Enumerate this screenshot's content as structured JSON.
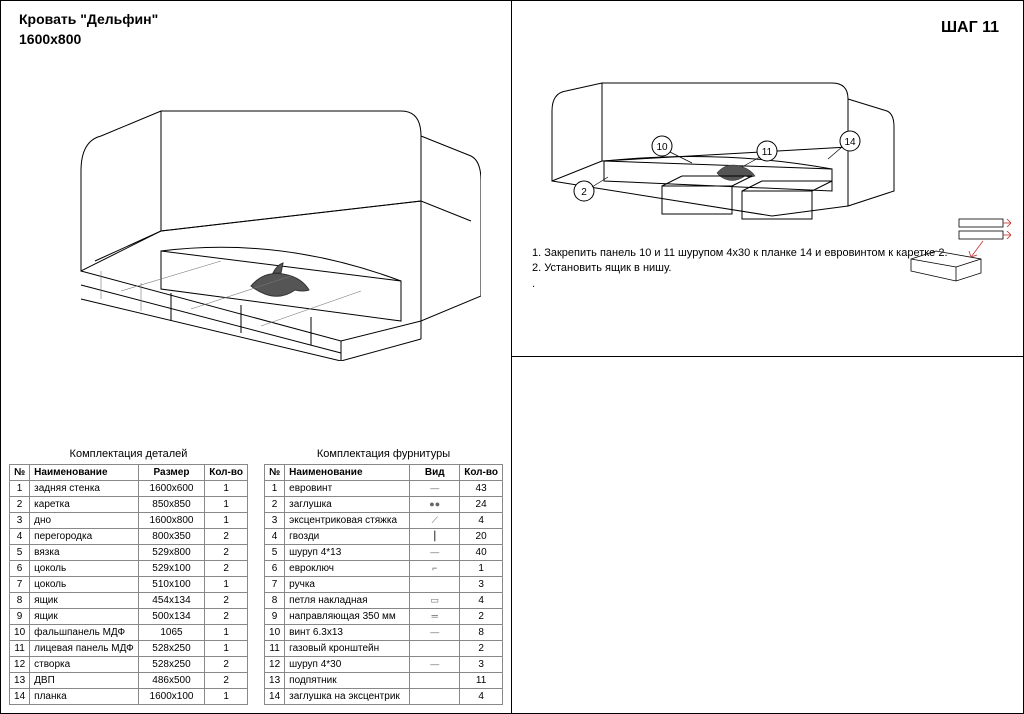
{
  "left": {
    "product_line1": "Кровать \"Дельфин\"",
    "product_line2": "1600х800",
    "parts_table": {
      "caption": "Комплектация деталей",
      "headers": [
        "№",
        "Наименование",
        "Размер",
        "Кол-во"
      ],
      "rows": [
        [
          "1",
          "задняя стенка",
          "1600х600",
          "1"
        ],
        [
          "2",
          "каретка",
          "850х850",
          "1"
        ],
        [
          "3",
          "дно",
          "1600х800",
          "1"
        ],
        [
          "4",
          "перегородка",
          "800х350",
          "2"
        ],
        [
          "5",
          "вязка",
          "529х800",
          "2"
        ],
        [
          "6",
          "цоколь",
          "529х100",
          "2"
        ],
        [
          "7",
          "цоколь",
          "510х100",
          "1"
        ],
        [
          "8",
          "ящик",
          "454х134",
          "2"
        ],
        [
          "9",
          "ящик",
          "500х134",
          "2"
        ],
        [
          "10",
          "фальшпанель МДФ",
          "1065",
          "1"
        ],
        [
          "11",
          "лицевая панель МДФ",
          "528х250",
          "1"
        ],
        [
          "12",
          "створка",
          "528х250",
          "2"
        ],
        [
          "13",
          "ДВП",
          "486х500",
          "2"
        ],
        [
          "14",
          "планка",
          "1600х100",
          "1"
        ]
      ]
    },
    "hardware_table": {
      "caption": "Комплектация фурнитуры",
      "headers": [
        "№",
        "Наименование",
        "Вид",
        "Кол-во"
      ],
      "rows": [
        [
          "1",
          "евровинт",
          "—",
          "43"
        ],
        [
          "2",
          "заглушка",
          "●●",
          "24"
        ],
        [
          "3",
          "эксцентриковая стяжка",
          "⟋",
          "4"
        ],
        [
          "4",
          "гвозди",
          "┃",
          "20"
        ],
        [
          "5",
          "шуруп 4*13",
          "—",
          "40"
        ],
        [
          "6",
          "евроключ",
          "⌐",
          "1"
        ],
        [
          "7",
          "ручка",
          "",
          "3"
        ],
        [
          "8",
          "петля накладная",
          "▭",
          "4"
        ],
        [
          "9",
          "направляющая 350 мм",
          "═",
          "2"
        ],
        [
          "10",
          "винт 6.3х13",
          "—",
          "8"
        ],
        [
          "11",
          "газовый кронштейн",
          "",
          "2"
        ],
        [
          "12",
          "шуруп 4*30",
          "—",
          "3"
        ],
        [
          "13",
          "подпятник",
          "",
          "11"
        ],
        [
          "14",
          "заглушка на эксцентрик",
          "",
          "4"
        ]
      ]
    }
  },
  "right": {
    "step_title": "ШАГ 11",
    "callouts": {
      "a": "10",
      "b": "11",
      "c": "14",
      "d": "2"
    },
    "instr1": "1. Закрепить панель 10 и 11 шурупом 4х30 к планке 14 и евровинтом к каретке 2.",
    "instr2": "2. Установить ящик в нишу."
  },
  "colors": {
    "line": "#000000",
    "light": "#555555",
    "grid": "#888888",
    "accent": "#c03030"
  }
}
